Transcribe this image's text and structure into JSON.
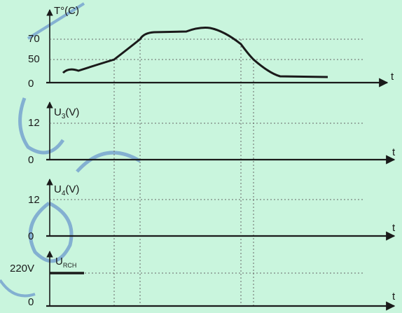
{
  "colors": {
    "background": "#c9f5dd",
    "ink": "#1a1a1a",
    "grid": "#666666",
    "watermark": "#4a78c8"
  },
  "watermark_text": "Tôi yêu",
  "panels": {
    "temperature": {
      "axis_label": "T°(C)",
      "x_label": "t",
      "ticks": [
        "70",
        "50",
        "0"
      ]
    },
    "u3": {
      "axis_label_main": "U",
      "axis_label_sub": "3",
      "axis_label_unit": "(V)",
      "x_label": "t",
      "ticks": [
        "12",
        "0"
      ]
    },
    "u4": {
      "axis_label_main": "U",
      "axis_label_sub": "4",
      "axis_label_unit": "(V)",
      "x_label": "t",
      "ticks": [
        "12",
        "0"
      ]
    },
    "urch": {
      "axis_label_main": "U",
      "axis_label_sub": "RCH",
      "x_label": "t",
      "ticks": [
        "220V",
        "0"
      ]
    }
  }
}
